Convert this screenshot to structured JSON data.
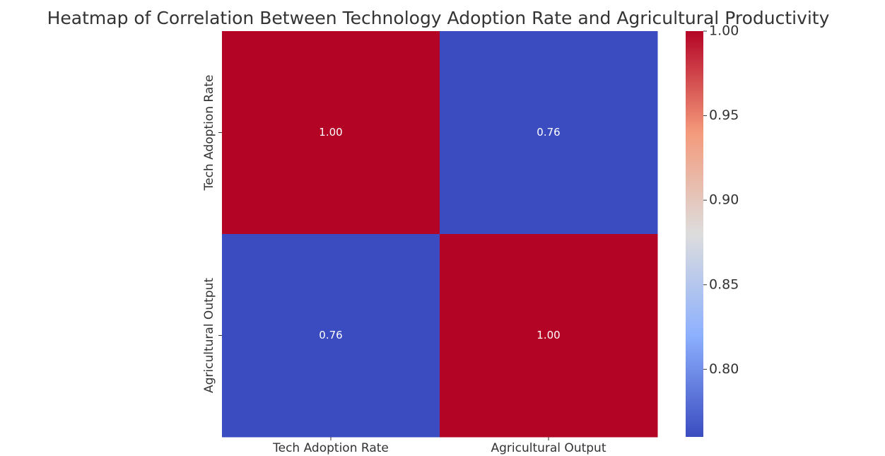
{
  "chart_data": {
    "type": "heatmap",
    "title": "Heatmap of Correlation Between Technology Adoption Rate and Agricultural Productivity",
    "x_categories": [
      "Tech Adoption Rate",
      "Agricultural Output"
    ],
    "y_categories": [
      "Tech Adoption Rate",
      "Agricultural Output"
    ],
    "values": [
      [
        1.0,
        0.76
      ],
      [
        0.76,
        1.0
      ]
    ],
    "value_labels": [
      [
        "1.00",
        "0.76"
      ],
      [
        "0.76",
        "1.00"
      ]
    ],
    "colormap": "coolwarm",
    "zlim": [
      0.76,
      1.0
    ],
    "zticks": [
      {
        "value": 0.8,
        "label": "0.80"
      },
      {
        "value": 0.85,
        "label": "0.85"
      },
      {
        "value": 0.9,
        "label": "0.90"
      },
      {
        "value": 0.95,
        "label": "0.95"
      },
      {
        "value": 1.0,
        "label": "1.00"
      }
    ]
  }
}
